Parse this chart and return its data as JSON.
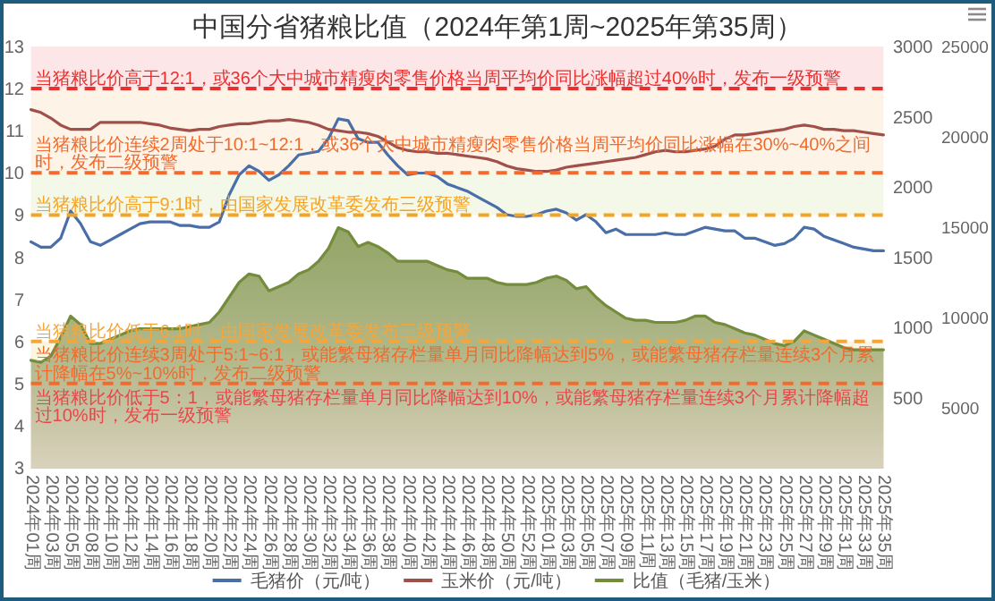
{
  "chart_data": {
    "type": "line",
    "title": "中国分省猪粮比值（2024年第1周~2025年第35周）",
    "categories": [
      "2024年01周",
      null,
      "2024年03周",
      null,
      "2024年05周",
      null,
      "2024年08周",
      null,
      "2024年10周",
      null,
      "2024年12周",
      null,
      "2024年14周",
      null,
      "2024年16周",
      null,
      "2024年18周",
      null,
      "2024年20周",
      null,
      "2024年22周",
      null,
      "2024年24周",
      null,
      "2024年26周",
      null,
      "2024年28周",
      null,
      "2024年30周",
      null,
      "2024年32周",
      null,
      "2024年34周",
      null,
      "2024年36周",
      null,
      "2024年38周",
      null,
      "2024年40周",
      null,
      "2024年42周",
      null,
      "2024年44周",
      null,
      "2024年46周",
      null,
      "2024年48周",
      null,
      "2024年50周",
      null,
      "2024年52周",
      null,
      "2025年01周",
      null,
      "2025年03周",
      null,
      "2025年05周",
      null,
      "2025年07周",
      null,
      "2025年09周",
      null,
      "2025年11周",
      null,
      "2025年13周",
      null,
      "2025年15周",
      null,
      "2025年17周",
      null,
      "2025年19周",
      null,
      "2025年21周",
      null,
      "2025年23周",
      null,
      "2025年25周",
      null,
      "2025年27周",
      null,
      "2025年29周",
      null,
      "2025年31周",
      null,
      "2025年33周",
      null,
      "2025年35周"
    ],
    "series": [
      {
        "name": "毛猪价（元/吨）",
        "color": "#4a6ea8",
        "axis": "y3",
        "values": [
          14200,
          13900,
          13900,
          14400,
          15900,
          15200,
          14200,
          14000,
          14300,
          14600,
          14900,
          15200,
          15300,
          15300,
          15300,
          15100,
          15100,
          15000,
          15000,
          15300,
          16800,
          17900,
          18400,
          18100,
          17600,
          17900,
          18400,
          19000,
          19100,
          19200,
          19900,
          21000,
          20900,
          19900,
          19700,
          19700,
          19000,
          18400,
          17900,
          18000,
          18000,
          17800,
          17400,
          17200,
          17000,
          16700,
          16400,
          16100,
          15700,
          15600,
          15600,
          15700,
          15900,
          16000,
          15800,
          15400,
          15700,
          15300,
          14700,
          14900,
          14600,
          14600,
          14600,
          14600,
          14700,
          14600,
          14600,
          14800,
          15000,
          14900,
          14800,
          14800,
          14400,
          14400,
          14200,
          14000,
          14100,
          14400,
          15000,
          14900,
          14500,
          14300,
          14100,
          13900,
          13800,
          13700,
          13700
        ]
      },
      {
        "name": "玉米价（元/吨）",
        "color": "#a0504a",
        "axis": "y2",
        "values": [
          2550,
          2530,
          2490,
          2440,
          2410,
          2410,
          2410,
          2460,
          2460,
          2460,
          2460,
          2460,
          2450,
          2440,
          2420,
          2410,
          2400,
          2410,
          2410,
          2430,
          2440,
          2450,
          2450,
          2460,
          2470,
          2470,
          2480,
          2470,
          2460,
          2440,
          2410,
          2400,
          2390,
          2390,
          2380,
          2360,
          2320,
          2280,
          2260,
          2250,
          2250,
          2240,
          2240,
          2230,
          2220,
          2210,
          2200,
          2180,
          2150,
          2130,
          2120,
          2110,
          2110,
          2120,
          2140,
          2150,
          2160,
          2170,
          2180,
          2190,
          2200,
          2210,
          2230,
          2250,
          2260,
          2250,
          2250,
          2260,
          2270,
          2290,
          2340,
          2370,
          2370,
          2380,
          2390,
          2400,
          2410,
          2430,
          2440,
          2430,
          2410,
          2410,
          2400,
          2400,
          2390,
          2380,
          2370
        ]
      },
      {
        "name": "比值（毛猪/玉米）",
        "type": "area",
        "color": "#748c3c",
        "values": [
          5.55,
          5.5,
          5.65,
          6.1,
          6.6,
          6.4,
          5.95,
          5.95,
          6.05,
          6.15,
          6.25,
          6.3,
          6.3,
          6.3,
          6.3,
          6.3,
          6.35,
          6.4,
          6.45,
          6.7,
          7.05,
          7.4,
          7.6,
          7.55,
          7.2,
          7.3,
          7.4,
          7.6,
          7.7,
          7.9,
          8.2,
          8.7,
          8.6,
          8.25,
          8.35,
          8.25,
          8.1,
          7.9,
          7.9,
          7.9,
          7.9,
          7.8,
          7.7,
          7.65,
          7.5,
          7.5,
          7.5,
          7.4,
          7.35,
          7.35,
          7.35,
          7.4,
          7.5,
          7.55,
          7.45,
          7.25,
          7.3,
          7.05,
          6.85,
          6.7,
          6.55,
          6.5,
          6.5,
          6.45,
          6.45,
          6.45,
          6.5,
          6.6,
          6.6,
          6.45,
          6.4,
          6.3,
          6.2,
          6.15,
          6.05,
          5.95,
          5.9,
          6.0,
          6.25,
          6.15,
          6.05,
          5.95,
          5.85,
          5.8,
          5.8,
          5.8,
          5.8
        ]
      }
    ],
    "ylim": [
      3,
      13
    ],
    "yticks": [
      3,
      4,
      5,
      6,
      7,
      8,
      9,
      10,
      11,
      12,
      13
    ],
    "y2lim": [
      0,
      3000
    ],
    "y2ticks": [
      500,
      1000,
      1500,
      2000,
      2500,
      3000
    ],
    "y3lim": [
      1700,
      25000
    ],
    "y3ticks": [
      5000,
      10000,
      15000,
      20000,
      25000
    ],
    "ref_lines": [
      {
        "axis": "y",
        "value": 12,
        "label": "当猪粮比价高于12:1，或36个大中城市精瘦肉零售价格当周平均价同比涨幅超过40%时，发布一级预警",
        "color": "#e8312f",
        "line_style": "dashed"
      },
      {
        "axis": "y",
        "value": 10,
        "label": "当猪粮比价连续2周处于10:1~12:1，或36个大中城市精瘦肉零售价格当周平均价同比涨幅在30%~40%之间时，发布二级预警",
        "color": "#f26a2c",
        "line_style": "dashed"
      },
      {
        "axis": "y",
        "value": 9,
        "label": "当猪粮比价高于9:1时，由国家发展改革委发布三级预警",
        "color": "#f5a322",
        "line_style": "dashed"
      },
      {
        "axis": "y",
        "value": 6,
        "label": "当猪粮比价低于6:1时，由国家发展改革委发布三级预警",
        "color": "#f5a63a",
        "line_style": "dashed"
      },
      {
        "axis": "y",
        "value": 5,
        "label": "当猪粮比价连续3周处于5:1~6:1，或能繁母猪存栏量单月同比降幅达到5%，或能繁母猪存栏量连续3个月累计降幅在5%~10%时，发布二级预警",
        "color": "#f26a2c",
        "line_style": "dashed"
      }
    ],
    "bands": [
      {
        "axis": "y",
        "from": 12,
        "to": 13,
        "color": "#fde6e8"
      },
      {
        "axis": "y",
        "from": 10,
        "to": 12,
        "color": "#fdf3e7"
      },
      {
        "axis": "y",
        "from": 9,
        "to": 10,
        "color": "#f4f8e9"
      },
      {
        "axis": "y",
        "from": 5,
        "to": 6,
        "color": "#faf6df"
      },
      {
        "axis": "y",
        "from": 3,
        "to": 5,
        "color": "#fde6e8",
        "label": "当猪粮比价低于5：1，或能繁母猪存栏量单月同比降幅达到10%，或能繁母猪存栏量连续3个月累计降幅超过10%时，发布一级预警"
      }
    ],
    "legend": "bottom"
  }
}
